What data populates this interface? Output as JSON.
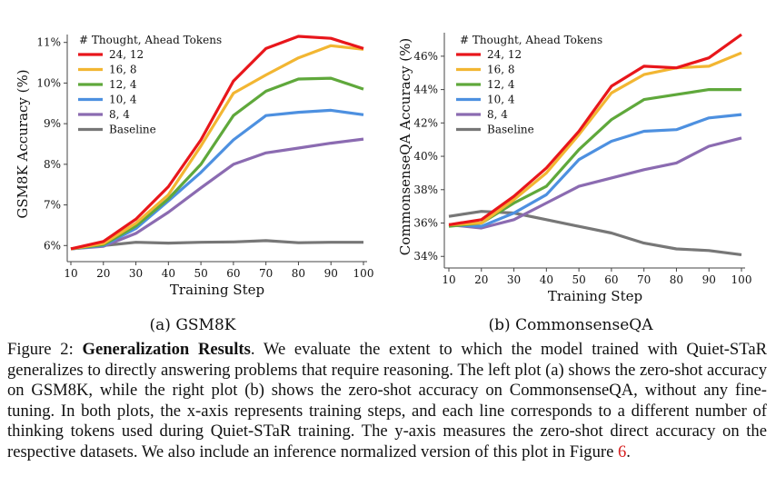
{
  "chart_data": [
    {
      "type": "line",
      "subtitle": "(a) GSM8K",
      "xlabel": "Training Step",
      "ylabel": "GSM8K Accuracy (%)",
      "x": [
        10,
        20,
        30,
        40,
        50,
        60,
        70,
        80,
        90,
        100
      ],
      "xlim": [
        10,
        100
      ],
      "ylim": [
        5.85,
        11.15
      ],
      "yticks": [
        6,
        7,
        8,
        9,
        10,
        11
      ],
      "ytick_labels": [
        "6%",
        "7%",
        "8%",
        "9%",
        "10%",
        "11%"
      ],
      "grid": false,
      "legend_title": "# Thought, Ahead Tokens",
      "legend_placement": "top-left",
      "series": [
        {
          "name": "24, 12",
          "color": "#e8161b",
          "values": [
            5.92,
            6.1,
            6.65,
            7.45,
            8.6,
            10.05,
            10.85,
            11.15,
            11.1,
            10.85
          ]
        },
        {
          "name": "16, 8",
          "color": "#f2b632",
          "values": [
            5.92,
            6.05,
            6.55,
            7.25,
            8.45,
            9.75,
            10.2,
            10.62,
            10.92,
            10.83
          ]
        },
        {
          "name": "12, 4",
          "color": "#5fa83b",
          "values": [
            5.92,
            6.02,
            6.48,
            7.15,
            8.0,
            9.2,
            9.8,
            10.1,
            10.12,
            9.85
          ]
        },
        {
          "name": "10, 4",
          "color": "#4d90e0",
          "values": [
            5.92,
            6.0,
            6.42,
            7.1,
            7.8,
            8.6,
            9.2,
            9.28,
            9.33,
            9.22
          ]
        },
        {
          "name": "8, 4",
          "color": "#8b6bb1",
          "values": [
            5.92,
            5.98,
            6.3,
            6.82,
            7.42,
            8.0,
            8.28,
            8.4,
            8.52,
            8.62
          ]
        },
        {
          "name": "Baseline",
          "color": "#777777",
          "values": [
            5.92,
            6.0,
            6.08,
            6.06,
            6.08,
            6.09,
            6.12,
            6.07,
            6.08,
            6.08
          ]
        }
      ]
    },
    {
      "type": "line",
      "subtitle": "(b) CommonsenseQA",
      "xlabel": "Training Step",
      "ylabel": "CommonsenseQA Accuracy (%)",
      "x": [
        10,
        20,
        30,
        40,
        50,
        60,
        70,
        80,
        90,
        100
      ],
      "xlim": [
        10,
        100
      ],
      "ylim": [
        33.85,
        47.3
      ],
      "yticks": [
        34,
        36,
        38,
        40,
        42,
        44,
        46
      ],
      "ytick_labels": [
        "34%",
        "36%",
        "38%",
        "40%",
        "42%",
        "44%",
        "46%"
      ],
      "grid": false,
      "legend_title": "# Thought, Ahead Tokens",
      "legend_placement": "top-left",
      "series": [
        {
          "name": "24, 12",
          "color": "#e8161b",
          "values": [
            35.9,
            36.2,
            37.6,
            39.3,
            41.5,
            44.2,
            45.4,
            45.3,
            45.9,
            47.3
          ]
        },
        {
          "name": "16, 8",
          "color": "#f2b632",
          "values": [
            35.9,
            36.0,
            37.4,
            39.0,
            41.3,
            43.8,
            44.9,
            45.3,
            45.4,
            46.2
          ]
        },
        {
          "name": "12, 4",
          "color": "#5fa83b",
          "values": [
            35.8,
            36.0,
            37.2,
            38.2,
            40.4,
            42.2,
            43.4,
            43.7,
            44.0,
            44.0
          ]
        },
        {
          "name": "10, 4",
          "color": "#4d90e0",
          "values": [
            35.9,
            35.8,
            36.6,
            37.7,
            39.8,
            40.9,
            41.5,
            41.6,
            42.3,
            42.5
          ]
        },
        {
          "name": "8, 4",
          "color": "#8b6bb1",
          "values": [
            35.9,
            35.7,
            36.2,
            37.2,
            38.2,
            38.7,
            39.2,
            39.6,
            40.6,
            41.1
          ]
        },
        {
          "name": "Baseline",
          "color": "#777777",
          "values": [
            36.4,
            36.7,
            36.6,
            36.2,
            35.8,
            35.4,
            34.8,
            34.45,
            34.35,
            34.1
          ]
        }
      ]
    }
  ],
  "caption": {
    "label": "Figure 2:",
    "title": "Generalization Results",
    "body_1": ". We evaluate the extent to which the model trained with Quiet-STaR generalizes to directly answering problems that require reasoning. The left plot (a) shows the zero-shot accuracy on GSM8K, while the right plot (b) shows the zero-shot accuracy on CommonsenseQA, without any fine-tuning. In both plots, the x-axis represents training steps, and each line corresponds to a different number of thinking tokens used during Quiet-STaR training. The y-axis measures the zero-shot direct accuracy on the respective datasets. We also include an inference normalized version of this plot in Figure ",
    "figure_ref": "6",
    "body_2": "."
  }
}
